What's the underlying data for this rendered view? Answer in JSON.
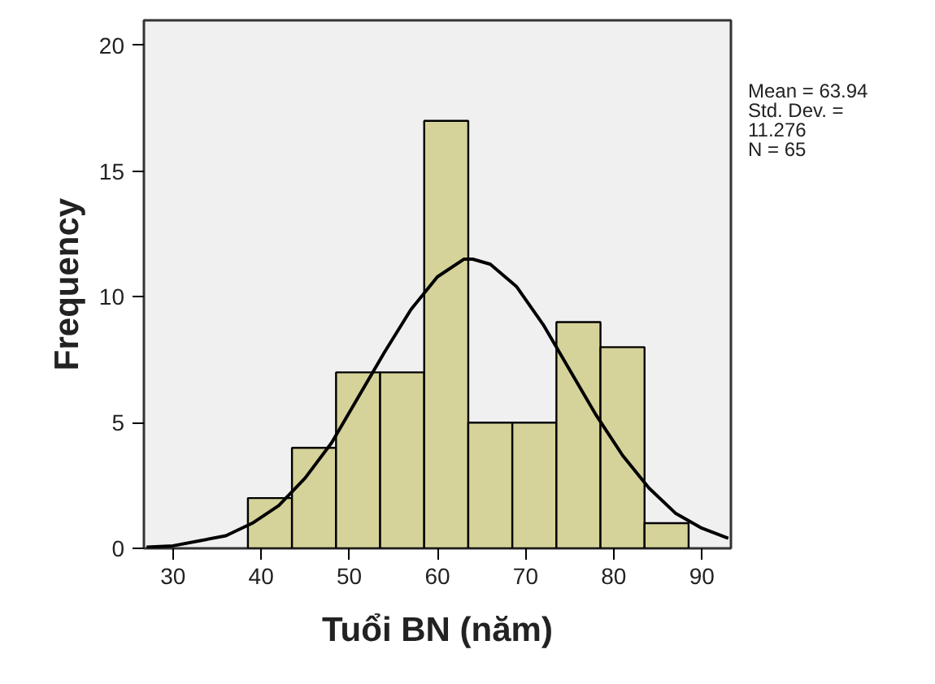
{
  "chart_data": {
    "type": "histogram",
    "xlabel": "Tuổi BN (năm)",
    "ylabel": "Frequency",
    "bins": [
      38.5,
      43.5,
      48.5,
      53.5,
      58.5,
      63.5,
      68.5,
      73.5,
      78.5,
      83.5,
      88.5
    ],
    "values": [
      2,
      4,
      7,
      7,
      17,
      5,
      5,
      9,
      8,
      1
    ],
    "color": "#d6d39a",
    "series": [
      {
        "type": "line",
        "color": "#000000",
        "x": [
          27,
          30,
          33,
          36,
          39,
          42,
          45,
          48,
          51,
          54,
          57,
          60,
          63,
          64,
          66,
          69,
          72,
          75,
          78,
          81,
          84,
          87,
          90,
          93
        ],
        "values": [
          0.05,
          0.1,
          0.3,
          0.5,
          1.0,
          1.7,
          2.8,
          4.2,
          6.0,
          7.8,
          9.5,
          10.8,
          11.5,
          11.5,
          11.3,
          10.4,
          8.9,
          7.1,
          5.3,
          3.7,
          2.4,
          1.4,
          0.8,
          0.4
        ]
      }
    ],
    "xlim": [
      26.7,
      93.3
    ],
    "xticks": [
      30,
      40,
      50,
      60,
      70,
      80,
      90
    ],
    "ylim": [
      0,
      21
    ],
    "yticks": [
      0,
      5,
      10,
      15,
      20
    ],
    "grid": false,
    "annotations": [
      "Mean = 63.94",
      "Std. Dev. =\n11.276",
      "N = 65"
    ]
  }
}
